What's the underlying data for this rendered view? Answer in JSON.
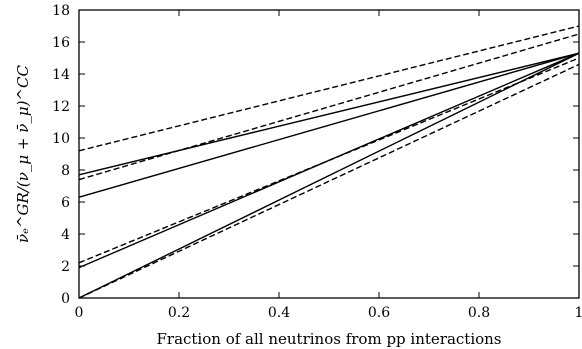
{
  "chart_data": {
    "type": "line",
    "title": "",
    "xlabel": "Fraction of all neutrinos from pp interactions",
    "ylabel": "ν̄ₑ^GR/(ν_μ + ν̄_μ)^CC",
    "xlim": [
      0,
      1
    ],
    "ylim": [
      0,
      18
    ],
    "xticks": [
      0,
      0.2,
      0.4,
      0.6,
      0.8,
      1
    ],
    "xtick_labels": [
      "0",
      "0.2",
      "0.4",
      "0.6",
      "0.8",
      "1"
    ],
    "yticks": [
      0,
      2,
      4,
      6,
      8,
      10,
      12,
      14,
      16,
      18
    ],
    "ytick_labels": [
      "0",
      "2",
      "4",
      "6",
      "8",
      "10",
      "12",
      "14",
      "16",
      "18"
    ],
    "grid": false,
    "legend": "none",
    "series": [
      {
        "style": "solid",
        "x": [
          0,
          1
        ],
        "y": [
          7.7,
          15.3
        ]
      },
      {
        "style": "solid",
        "x": [
          0,
          1
        ],
        "y": [
          6.3,
          15.3
        ]
      },
      {
        "style": "solid",
        "x": [
          0,
          1
        ],
        "y": [
          1.9,
          15.3
        ]
      },
      {
        "style": "solid",
        "x": [
          0,
          1
        ],
        "y": [
          0.0,
          15.3
        ]
      },
      {
        "style": "dashed",
        "x": [
          0,
          1
        ],
        "y": [
          9.2,
          17.0
        ]
      },
      {
        "style": "dashed",
        "x": [
          0,
          1
        ],
        "y": [
          7.4,
          16.5
        ]
      },
      {
        "style": "dashed",
        "x": [
          0,
          1
        ],
        "y": [
          2.2,
          15.0
        ]
      },
      {
        "style": "dashed",
        "x": [
          0,
          1
        ],
        "y": [
          0.0,
          14.6
        ]
      }
    ]
  }
}
